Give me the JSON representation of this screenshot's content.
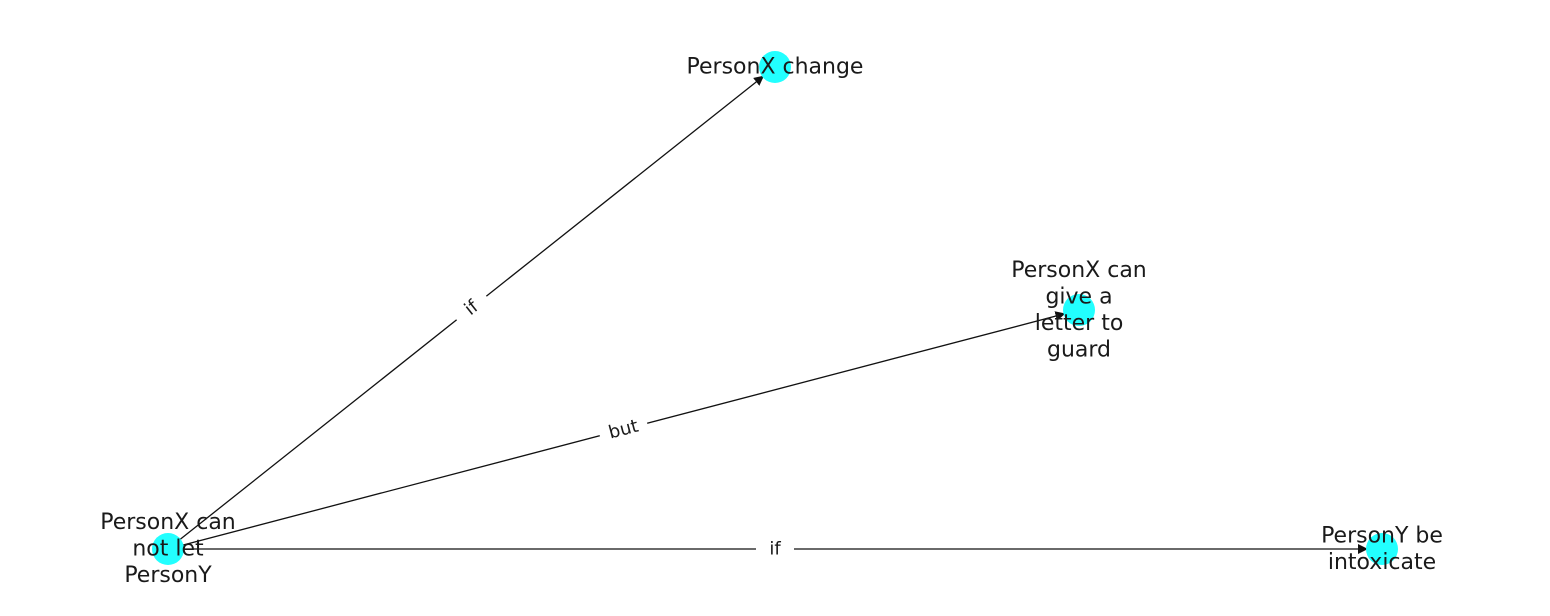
{
  "colors": {
    "node": "#22ffff",
    "edge": "#111111",
    "text": "#1a1a1a"
  },
  "nodes": [
    {
      "id": "n0",
      "lines": [
        "PersonX can",
        "not let",
        "PersonY"
      ]
    },
    {
      "id": "n1",
      "lines": [
        "PersonX change"
      ]
    },
    {
      "id": "n2",
      "lines": [
        "PersonX can",
        "give a",
        "letter to",
        "guard"
      ]
    },
    {
      "id": "n3",
      "lines": [
        "PersonY be",
        "intoxicate"
      ]
    }
  ],
  "edges": [
    {
      "from": "n0",
      "to": "n1",
      "label": "if"
    },
    {
      "from": "n0",
      "to": "n2",
      "label": "but"
    },
    {
      "from": "n0",
      "to": "n3",
      "label": "if"
    }
  ]
}
